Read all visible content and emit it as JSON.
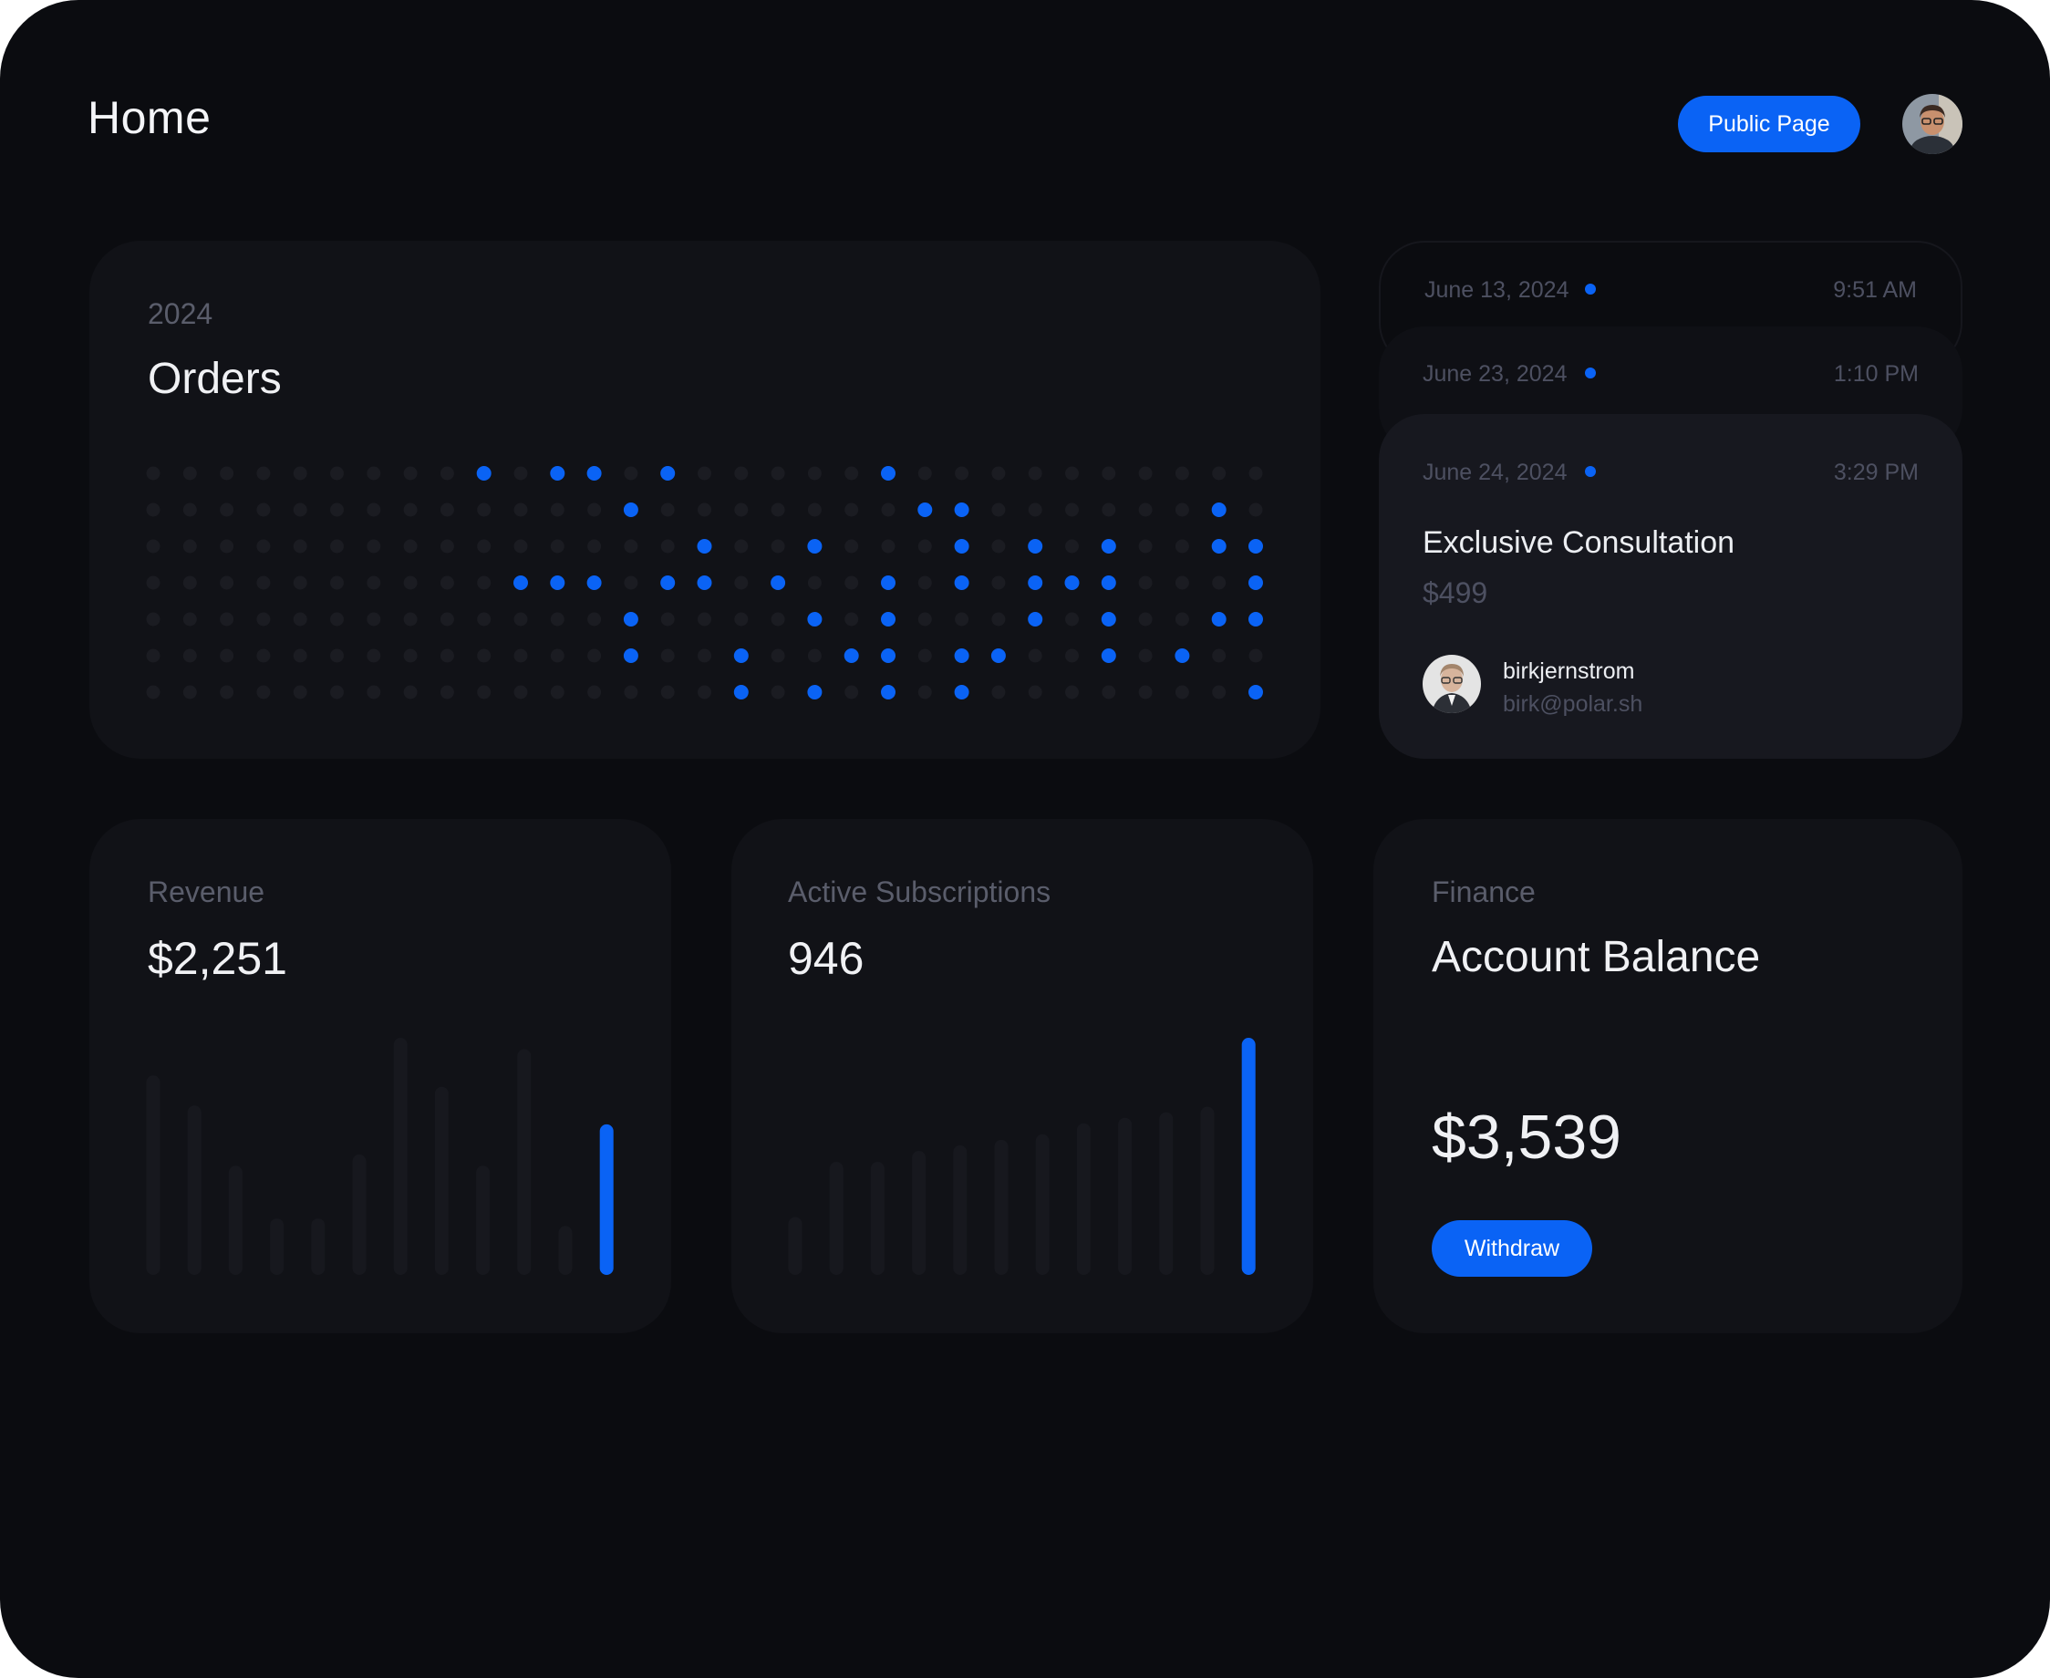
{
  "header": {
    "title": "Home",
    "public_page_label": "Public Page",
    "avatar_icon": "user-avatar-photo"
  },
  "orders_card": {
    "year": "2024",
    "title": "Orders"
  },
  "chart_data": [
    {
      "type": "heatmap",
      "title": "Orders",
      "subtitle": "2024",
      "rows": 7,
      "columns": 31,
      "active_color": "#0a63f5",
      "inactive_color": "#1b1c22",
      "active_cells": [
        [
          0,
          9
        ],
        [
          0,
          11
        ],
        [
          0,
          12
        ],
        [
          0,
          14
        ],
        [
          0,
          20
        ],
        [
          1,
          13
        ],
        [
          1,
          21
        ],
        [
          1,
          22
        ],
        [
          1,
          29
        ],
        [
          2,
          15
        ],
        [
          2,
          18
        ],
        [
          2,
          22
        ],
        [
          2,
          24
        ],
        [
          2,
          26
        ],
        [
          2,
          29
        ],
        [
          2,
          30
        ],
        [
          3,
          10
        ],
        [
          3,
          11
        ],
        [
          3,
          12
        ],
        [
          3,
          14
        ],
        [
          3,
          15
        ],
        [
          3,
          17
        ],
        [
          3,
          20
        ],
        [
          3,
          22
        ],
        [
          3,
          24
        ],
        [
          3,
          25
        ],
        [
          3,
          26
        ],
        [
          3,
          30
        ],
        [
          4,
          13
        ],
        [
          4,
          18
        ],
        [
          4,
          20
        ],
        [
          4,
          24
        ],
        [
          4,
          26
        ],
        [
          4,
          29
        ],
        [
          4,
          30
        ],
        [
          5,
          13
        ],
        [
          5,
          16
        ],
        [
          5,
          19
        ],
        [
          5,
          20
        ],
        [
          5,
          22
        ],
        [
          5,
          23
        ],
        [
          5,
          26
        ],
        [
          5,
          28
        ],
        [
          6,
          16
        ],
        [
          6,
          18
        ],
        [
          6,
          20
        ],
        [
          6,
          22
        ],
        [
          6,
          30
        ]
      ]
    },
    {
      "type": "bar",
      "title": "Revenue",
      "values": [
        53,
        45,
        29,
        15,
        15,
        32,
        63,
        50,
        29,
        60,
        13,
        40
      ],
      "highlight_index": 11,
      "bar_color": "#17181e",
      "highlight_color": "#0a63f5"
    },
    {
      "type": "bar",
      "title": "Active Subscriptions",
      "values": [
        21,
        41,
        41,
        45,
        47,
        49,
        51,
        55,
        57,
        59,
        61,
        86
      ],
      "highlight_index": 11,
      "bar_color": "#17181e",
      "highlight_color": "#0a63f5"
    }
  ],
  "orders_feed": [
    {
      "date": "June 13, 2024",
      "time": "9:51 AM"
    },
    {
      "date": "June 23, 2024",
      "time": "1:10 PM"
    },
    {
      "date": "June 24, 2024",
      "time": "3:29 PM",
      "product": "Exclusive Consultation",
      "price": "$499",
      "customer_name": "birkjernstrom",
      "customer_email": "birk@polar.sh",
      "avatar_icon": "customer-avatar-photo"
    }
  ],
  "revenue": {
    "label": "Revenue",
    "value": "$2,251"
  },
  "subscriptions": {
    "label": "Active Subscriptions",
    "value": "946"
  },
  "finance": {
    "label": "Finance",
    "title": "Account Balance",
    "balance": "$3,539",
    "withdraw_label": "Withdraw"
  },
  "colors": {
    "background": "#0b0c10",
    "card": "#111217",
    "accent": "#0a63f5",
    "text": "#f0f1f4",
    "muted": "#5a5d6b"
  }
}
